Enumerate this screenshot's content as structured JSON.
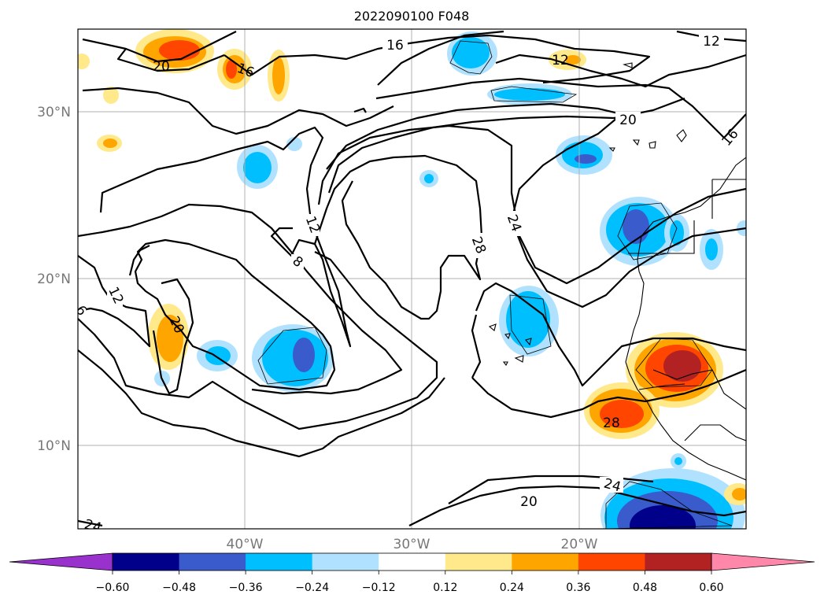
{
  "title": "2022090100 F048",
  "lat_labels": [
    "30°N",
    "20°N",
    "10°N"
  ],
  "lon_labels": [
    "40°W",
    "30°W",
    "20°W"
  ],
  "contour_labels": [
    "16",
    "12",
    "20",
    "16",
    "12",
    "20",
    "16",
    "24",
    "28",
    "12",
    "8",
    "12",
    "6",
    "20",
    "28",
    "24",
    "20",
    "24"
  ],
  "colorbar": {
    "colors": [
      "#9932cc",
      "#00008b",
      "#3a5bcc",
      "#00bfff",
      "#b0e2ff",
      "#ffffff",
      "#ffe98a",
      "#ffa500",
      "#ff4500",
      "#b22222",
      "#ff88aa"
    ],
    "tick_labels": [
      "−0.60",
      "−0.48",
      "−0.36",
      "−0.24",
      "−0.12",
      "0.12",
      "0.24",
      "0.36",
      "0.48",
      "0.60"
    ]
  }
}
